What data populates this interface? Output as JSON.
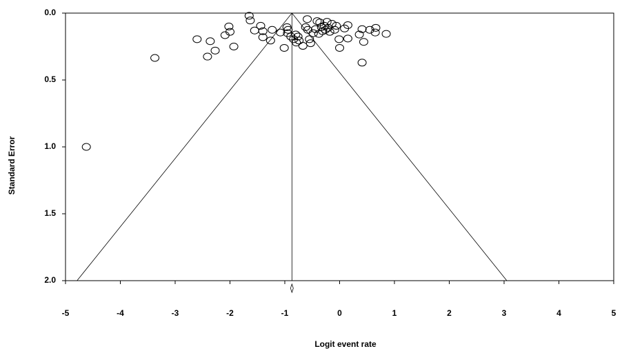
{
  "chart_data": {
    "type": "scatter",
    "x_label": "Logit event rate",
    "y_label": "Standard Error",
    "xlim": [
      -5,
      5
    ],
    "ylim": [
      0,
      2
    ],
    "y_inverted": true,
    "xticks": [
      -5,
      -4,
      -3,
      -2,
      -1,
      0,
      1,
      2,
      3,
      4,
      5
    ],
    "yticks": [
      {
        "value": 0,
        "label": "0.0"
      },
      {
        "value": 0.5,
        "label": "0.5"
      },
      {
        "value": 1,
        "label": "1.0"
      },
      {
        "value": 1.5,
        "label": "1.5"
      },
      {
        "value": 2,
        "label": "2.0"
      }
    ],
    "summary_x": -0.87,
    "funnel_bottom": [
      -4.79,
      3.05
    ],
    "color": "#000000",
    "series": [
      {
        "x": [
          -4.62,
          -3.37,
          -2.6,
          -2.41,
          -2.36,
          -2.27,
          -2.09,
          -2.02,
          -2.0,
          -1.93,
          -1.65,
          -1.63,
          -1.55,
          -1.44,
          -1.4,
          -1.4,
          -1.26,
          -1.23,
          -1.08,
          -1.01,
          -0.96,
          -0.95,
          -0.94,
          -0.89,
          -0.84,
          -0.8,
          -0.79,
          -0.76,
          -0.74,
          -0.67,
          -0.62,
          -0.59,
          -0.58,
          -0.55,
          -0.53,
          -0.48,
          -0.44,
          -0.41,
          -0.38,
          -0.36,
          -0.33,
          -0.31,
          -0.28,
          -0.26,
          -0.23,
          -0.21,
          -0.18,
          -0.14,
          -0.09,
          -0.06,
          -0.01,
          0.0,
          0.09,
          0.15,
          0.15,
          0.36,
          0.41,
          0.44,
          0.41,
          0.55,
          0.65,
          0.66,
          0.85
        ],
        "values": [
          1.0,
          0.335,
          0.195,
          0.325,
          0.21,
          0.28,
          0.165,
          0.1,
          0.14,
          0.25,
          0.02,
          0.055,
          0.13,
          0.095,
          0.135,
          0.18,
          0.205,
          0.125,
          0.145,
          0.26,
          0.105,
          0.15,
          0.125,
          0.175,
          0.195,
          0.16,
          0.22,
          0.175,
          0.205,
          0.245,
          0.105,
          0.045,
          0.125,
          0.195,
          0.225,
          0.15,
          0.12,
          0.06,
          0.155,
          0.07,
          0.105,
          0.135,
          0.095,
          0.125,
          0.065,
          0.11,
          0.14,
          0.08,
          0.125,
          0.095,
          0.195,
          0.26,
          0.115,
          0.09,
          0.19,
          0.16,
          0.12,
          0.215,
          0.37,
          0.125,
          0.145,
          0.11,
          0.155
        ]
      }
    ]
  }
}
